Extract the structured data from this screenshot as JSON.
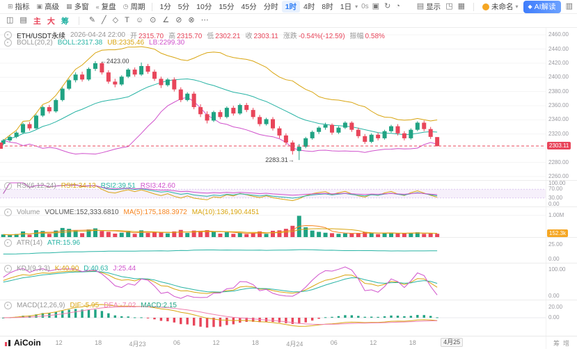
{
  "accent": {
    "up": "#20a383",
    "down": "#e8455a",
    "blue": "#2b7cf6",
    "orange": "#f5841f",
    "yellow": "#d9a510",
    "teal": "#27b3a4",
    "magenta": "#d052cc",
    "pink": "#ef7fae",
    "dark": "#555555",
    "tagvol": "#f5a623"
  },
  "toolbar": {
    "menus": [
      {
        "name": "indicators-menu",
        "label": "指标",
        "icon": "⊞"
      },
      {
        "name": "advanced-menu",
        "label": "高级",
        "icon": "▣"
      },
      {
        "name": "multi-window-menu",
        "label": "多窗",
        "icon": "▦"
      },
      {
        "name": "replay-menu",
        "label": "复盘",
        "icon": "«"
      },
      {
        "name": "period-menu",
        "label": "周期",
        "icon": "◷"
      }
    ],
    "timeframes": [
      "1分",
      "5分",
      "10分",
      "15分",
      "45分",
      "分时",
      "1时",
      "4时",
      "8时",
      "1日"
    ],
    "active_timeframe": "1时",
    "countdown": "0s",
    "mid_icons": [
      {
        "name": "camera-icon",
        "glyph": "▣"
      },
      {
        "name": "refresh-icon",
        "glyph": "↻"
      },
      {
        "name": "alert-icon",
        "glyph": "◔"
      }
    ],
    "display": {
      "label": "显示",
      "icon": "▤"
    },
    "right_icons": [
      {
        "name": "fullscreen-icon",
        "glyph": "◳"
      },
      {
        "name": "layout-grid-icon",
        "glyph": "▦"
      }
    ],
    "account": "未命名",
    "ai_button": "AI解读",
    "panel_icon": {
      "name": "right-panel-icon",
      "glyph": "▥"
    }
  },
  "draw_toolbar": {
    "left_icons": [
      {
        "name": "chart-window-icon",
        "glyph": "◫"
      },
      {
        "name": "kline-style-icon",
        "glyph": "▤"
      }
    ],
    "tabs": [
      {
        "label": "主",
        "color": "down"
      },
      {
        "label": "大",
        "color": "down"
      },
      {
        "label": "筹",
        "color": "teal"
      }
    ],
    "tools": [
      {
        "name": "pencil-icon",
        "glyph": "✎"
      },
      {
        "name": "trendline-icon",
        "glyph": "╱"
      },
      {
        "name": "shapes-icon",
        "glyph": "◇"
      },
      {
        "name": "text-tool-icon",
        "glyph": "T"
      },
      {
        "name": "emoji-icon",
        "glyph": "☺"
      },
      {
        "name": "magnet-icon",
        "glyph": "⊙"
      },
      {
        "name": "measure-icon",
        "glyph": "∠"
      },
      {
        "name": "eraser-icon",
        "glyph": "⊘"
      },
      {
        "name": "trash-icon",
        "glyph": "⊗"
      },
      {
        "name": "more-tools-icon",
        "glyph": "⋯"
      }
    ]
  },
  "symbol_row": {
    "symbol": "ETH/USDT永续",
    "datetime": "2026-04-24 22:00",
    "fields": [
      [
        "开",
        "2315.70"
      ],
      [
        "高",
        "2315.70"
      ],
      [
        "低",
        "2302.21"
      ],
      [
        "收",
        "2303.11"
      ],
      [
        "涨跌",
        "-0.54%(-12.59)"
      ],
      [
        "振幅",
        "0.58%"
      ]
    ]
  },
  "boll_row": {
    "name": "BOLL(20,2)",
    "items": [
      [
        "BOLL:2317.38",
        "teal"
      ],
      [
        "UB:2335.46",
        "yellow"
      ],
      [
        "LB:2299.30",
        "magenta"
      ]
    ]
  },
  "indicators": {
    "rsi": {
      "name": "RSI(6,12,24)",
      "items": [
        [
          "RSI1:34.13",
          "yellow"
        ],
        [
          "RSI2:39.51",
          "teal"
        ],
        [
          "RSI3:42.60",
          "magenta"
        ]
      ],
      "axis": [
        "100.00",
        "70.00",
        "30.00",
        "0.00"
      ]
    },
    "volume": {
      "name": "Volume",
      "items": [
        [
          "VOLUME:152,333.6810",
          "dark"
        ],
        [
          "MA(5):175,188.3972",
          "orange"
        ],
        [
          "MA(10):136,190.4451",
          "yellow"
        ]
      ],
      "axis": [
        "1.00M"
      ],
      "tag": "152.3k"
    },
    "atr": {
      "name": "ATR(14)",
      "items": [
        [
          "ATR:15.96",
          "teal"
        ]
      ],
      "axis": [
        "25.00",
        "0.00"
      ]
    },
    "kdj": {
      "name": "KDJ(9,3,3)",
      "items": [
        [
          "K:40.90",
          "yellow"
        ],
        [
          "D:40.63",
          "teal"
        ],
        [
          "J:25.44",
          "magenta"
        ]
      ],
      "axis": [
        "100.00",
        "0.00"
      ]
    },
    "macd": {
      "name": "MACD(12,26,9)",
      "items": [
        [
          "DIF:-5.95",
          "yellow"
        ],
        [
          "DEA:-7.02",
          "pink"
        ],
        [
          "MACD:2.15",
          "up"
        ]
      ],
      "axis": [
        "20.00",
        "0.00"
      ]
    }
  },
  "price_axis": {
    "labels": [
      "2460.00",
      "2440.00",
      "2420.00",
      "2400.00",
      "2380.00",
      "2360.00",
      "2340.00",
      "2320.00",
      "2280.00",
      "2260.00"
    ],
    "last_price": "2303.11"
  },
  "annotations": {
    "high": "2423.00",
    "low": "2283.31"
  },
  "time_axis": {
    "labels": [
      "12",
      "18",
      "4月23",
      "06",
      "12",
      "18",
      "4月24",
      "06",
      "12",
      "18"
    ],
    "current": "4月25"
  },
  "logo": "AiCoin",
  "side_tabs": [
    "筹",
    "增"
  ],
  "chart_data": {
    "type": "candlestick",
    "symbol": "ETH/USDT永续",
    "interval": "1时",
    "price_range": [
      2255,
      2470
    ],
    "volume_axis_max_k": 1250,
    "last_price": 2303.11,
    "high_annotation": 2423.0,
    "low_annotation": 2283.31,
    "overlays": [
      "BOLL(20,2)"
    ],
    "panes": [
      "RSI(6,12,24)",
      "Volume MA(5) MA(10)",
      "ATR(14)",
      "KDJ(9,3,3)",
      "MACD(12,26,9)"
    ],
    "candles": [
      [
        2306,
        2313,
        2304,
        2311,
        120
      ],
      [
        2311,
        2318,
        2309,
        2316,
        90
      ],
      [
        2316,
        2324,
        2314,
        2322,
        140
      ],
      [
        2322,
        2336,
        2320,
        2334,
        260
      ],
      [
        2334,
        2337,
        2325,
        2328,
        110
      ],
      [
        2328,
        2348,
        2327,
        2346,
        320
      ],
      [
        2346,
        2360,
        2344,
        2358,
        280
      ],
      [
        2358,
        2361,
        2349,
        2352,
        150
      ],
      [
        2352,
        2370,
        2350,
        2368,
        300
      ],
      [
        2368,
        2386,
        2366,
        2384,
        420
      ],
      [
        2384,
        2398,
        2382,
        2396,
        380
      ],
      [
        2396,
        2407,
        2393,
        2404,
        300
      ],
      [
        2404,
        2408,
        2394,
        2397,
        180
      ],
      [
        2397,
        2414,
        2395,
        2412,
        350
      ],
      [
        2412,
        2423,
        2409,
        2420,
        400
      ],
      [
        2420,
        2422,
        2404,
        2407,
        280
      ],
      [
        2407,
        2410,
        2391,
        2394,
        240
      ],
      [
        2394,
        2398,
        2386,
        2390,
        160
      ],
      [
        2390,
        2403,
        2388,
        2401,
        200
      ],
      [
        2401,
        2413,
        2399,
        2411,
        260
      ],
      [
        2411,
        2414,
        2401,
        2404,
        150
      ],
      [
        2404,
        2421,
        2402,
        2416,
        310
      ],
      [
        2416,
        2419,
        2405,
        2408,
        190
      ],
      [
        2408,
        2411,
        2395,
        2398,
        210
      ],
      [
        2398,
        2401,
        2385,
        2389,
        230
      ],
      [
        2389,
        2399,
        2387,
        2397,
        170
      ],
      [
        2397,
        2400,
        2380,
        2383,
        260
      ],
      [
        2383,
        2386,
        2365,
        2368,
        330
      ],
      [
        2368,
        2379,
        2366,
        2377,
        190
      ],
      [
        2377,
        2380,
        2355,
        2358,
        300
      ],
      [
        2358,
        2362,
        2344,
        2348,
        280
      ],
      [
        2348,
        2352,
        2335,
        2339,
        320
      ],
      [
        2339,
        2353,
        2337,
        2351,
        240
      ],
      [
        2351,
        2354,
        2341,
        2344,
        160
      ],
      [
        2344,
        2359,
        2342,
        2357,
        220
      ],
      [
        2357,
        2360,
        2346,
        2349,
        150
      ],
      [
        2349,
        2363,
        2347,
        2361,
        200
      ],
      [
        2361,
        2364,
        2351,
        2354,
        140
      ],
      [
        2354,
        2357,
        2341,
        2344,
        180
      ],
      [
        2344,
        2347,
        2331,
        2334,
        260
      ],
      [
        2334,
        2343,
        2332,
        2341,
        150
      ],
      [
        2341,
        2344,
        2325,
        2328,
        290
      ],
      [
        2328,
        2331,
        2314,
        2318,
        310
      ],
      [
        2318,
        2321,
        2304,
        2308,
        380
      ],
      [
        2308,
        2311,
        2291,
        2296,
        520
      ],
      [
        2296,
        2306,
        2283.31,
        2302,
        980
      ],
      [
        2302,
        2316,
        2300,
        2314,
        450
      ],
      [
        2314,
        2325,
        2312,
        2323,
        300
      ],
      [
        2323,
        2331,
        2320,
        2329,
        240
      ],
      [
        2329,
        2336,
        2326,
        2333,
        200
      ],
      [
        2333,
        2335,
        2319,
        2322,
        180
      ],
      [
        2322,
        2331,
        2320,
        2329,
        150
      ],
      [
        2329,
        2338,
        2327,
        2336,
        170
      ],
      [
        2336,
        2338,
        2323,
        2326,
        160
      ],
      [
        2326,
        2329,
        2314,
        2317,
        190
      ],
      [
        2317,
        2320,
        2306,
        2309,
        230
      ],
      [
        2309,
        2321,
        2307,
        2319,
        200
      ],
      [
        2319,
        2322,
        2311,
        2314,
        140
      ],
      [
        2314,
        2326,
        2312,
        2324,
        180
      ],
      [
        2324,
        2333,
        2322,
        2331,
        210
      ],
      [
        2331,
        2334,
        2318,
        2321,
        160
      ],
      [
        2321,
        2324,
        2311,
        2314,
        170
      ],
      [
        2314,
        2328,
        2312,
        2326,
        190
      ],
      [
        2326,
        2338,
        2324,
        2336,
        220
      ],
      [
        2336,
        2339,
        2324,
        2327,
        150
      ],
      [
        2327,
        2330,
        2313,
        2316,
        160
      ],
      [
        2315.7,
        2315.7,
        2302.21,
        2303.11,
        152.3
      ]
    ]
  }
}
